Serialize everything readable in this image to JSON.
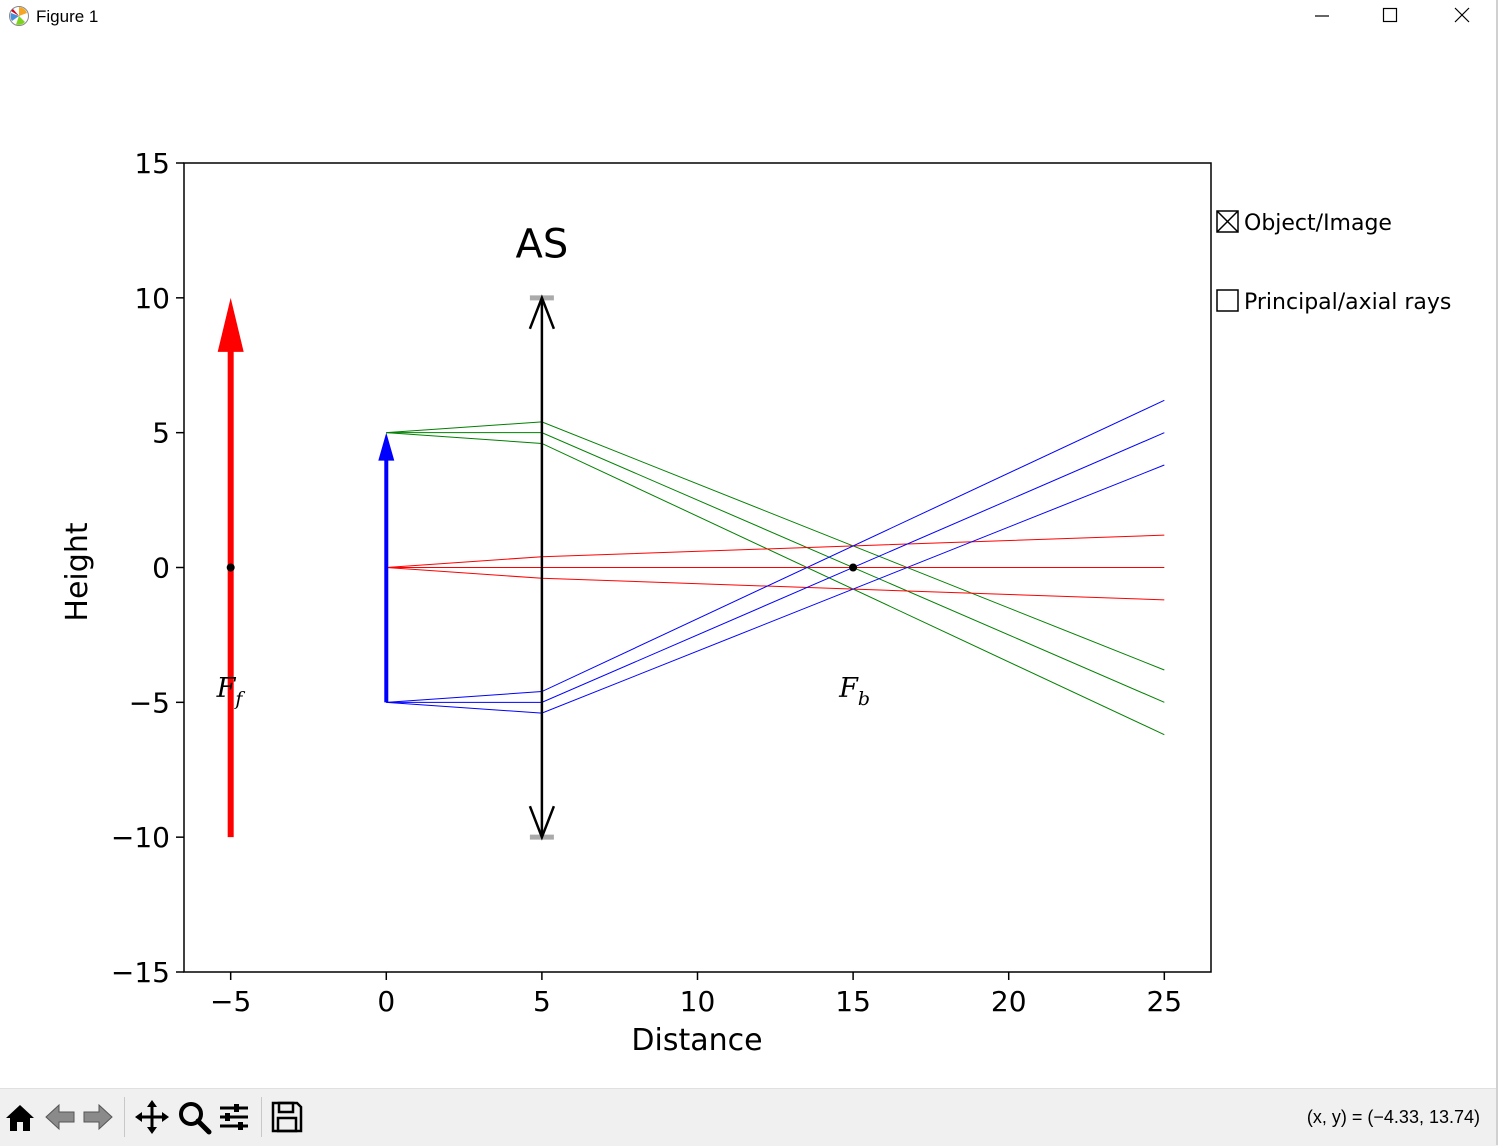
{
  "window": {
    "title": "Figure 1"
  },
  "toolbar": {
    "buttons": [
      "home-icon",
      "back-icon",
      "forward-icon",
      "pan-icon",
      "zoom-icon",
      "configure-subplots-icon",
      "save-icon"
    ],
    "coords": "(x, y) = (−4.33, 13.74)"
  },
  "checkboxes": [
    {
      "label": "Object/Image",
      "checked": true
    },
    {
      "label": "Principal/axial rays",
      "checked": false
    }
  ],
  "chart_data": {
    "type": "line",
    "xlabel": "Distance",
    "ylabel": "Height",
    "xlim": [
      -6.5,
      26.5
    ],
    "ylim": [
      -15,
      15
    ],
    "xticks": [
      -5,
      0,
      5,
      10,
      15,
      20,
      25
    ],
    "yticks": [
      -15,
      -10,
      -5,
      0,
      5,
      10,
      15
    ],
    "xtick_labels": [
      "−5",
      "0",
      "5",
      "10",
      "15",
      "20",
      "25"
    ],
    "ytick_labels": [
      "−15",
      "−10",
      "−5",
      "0",
      "5",
      "10",
      "15"
    ],
    "grid": false,
    "annotations": [
      {
        "text": "AS",
        "x": 5,
        "y": 11.5
      },
      {
        "text": "F",
        "sub": "f",
        "x": -5,
        "y": -4.8
      },
      {
        "text": "F",
        "sub": "b",
        "x": 15,
        "y": -4.8
      }
    ],
    "focal_points": [
      {
        "x": -5,
        "y": 0
      },
      {
        "x": 15,
        "y": 0
      }
    ],
    "arrows": [
      {
        "name": "front-focal-arrow",
        "color": "#ff0000",
        "x": -5,
        "y0": -10,
        "y1": 10
      },
      {
        "name": "object-arrow",
        "color": "#0000ff",
        "x": 0,
        "y0": -5,
        "y1": 5
      }
    ],
    "lens": {
      "x": 5,
      "y0": -10,
      "y1": 10,
      "color": "#000000",
      "stop_color": "#aaaaaa"
    },
    "series": [
      {
        "color": "#008000",
        "points": [
          [
            0,
            5
          ],
          [
            5,
            5.4
          ],
          [
            25,
            -3.8
          ]
        ]
      },
      {
        "color": "#008000",
        "points": [
          [
            0,
            5
          ],
          [
            5,
            5.0
          ],
          [
            25,
            -5.0
          ]
        ]
      },
      {
        "color": "#008000",
        "points": [
          [
            0,
            5
          ],
          [
            5,
            4.6
          ],
          [
            25,
            -6.2
          ]
        ]
      },
      {
        "color": "#ff0000",
        "points": [
          [
            0,
            0
          ],
          [
            5,
            0.4
          ],
          [
            25,
            1.2
          ]
        ]
      },
      {
        "color": "#ff0000",
        "points": [
          [
            0,
            0
          ],
          [
            5,
            0.0
          ],
          [
            25,
            0.0
          ]
        ]
      },
      {
        "color": "#ff0000",
        "points": [
          [
            0,
            0
          ],
          [
            5,
            -0.4
          ],
          [
            25,
            -1.2
          ]
        ]
      },
      {
        "color": "#0000ff",
        "points": [
          [
            0,
            -5
          ],
          [
            5,
            -4.6
          ],
          [
            25,
            6.2
          ]
        ]
      },
      {
        "color": "#0000ff",
        "points": [
          [
            0,
            -5
          ],
          [
            5,
            -5.0
          ],
          [
            25,
            5.0
          ]
        ]
      },
      {
        "color": "#0000ff",
        "points": [
          [
            0,
            -5
          ],
          [
            5,
            -5.4
          ],
          [
            25,
            3.8
          ]
        ]
      }
    ]
  }
}
